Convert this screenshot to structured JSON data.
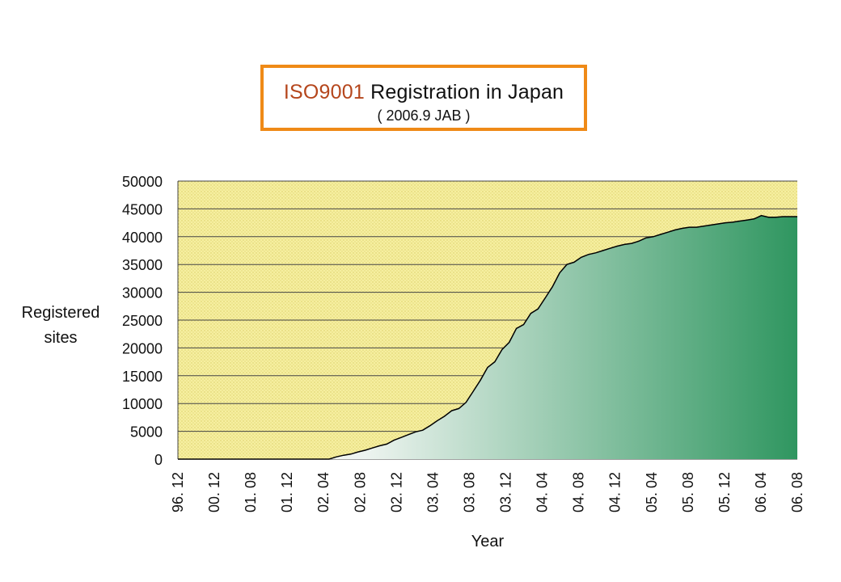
{
  "title": {
    "accent": "ISO9001",
    "rest": " Registration in Japan",
    "subtitle": "( 2006.9 JAB )"
  },
  "colors": {
    "title_border": "#ef8a17",
    "title_accent": "#b5461c",
    "plot_bg": "#f6efa0",
    "area_start": "#ffffff",
    "area_end": "#2f9660"
  },
  "chart_data": {
    "type": "area",
    "title": "ISO9001 Registration in Japan",
    "subtitle": "( 2006.9 JAB )",
    "xlabel": "Year",
    "ylabel": "Registered sites",
    "ylim": [
      0,
      50000
    ],
    "yticks": [
      0,
      5000,
      10000,
      15000,
      20000,
      25000,
      30000,
      35000,
      40000,
      45000,
      50000
    ],
    "xtick_labels": [
      "96. 12",
      "00. 12",
      "01. 08",
      "01. 12",
      "02. 04",
      "02. 08",
      "02. 12",
      "03. 04",
      "03. 08",
      "03. 12",
      "04. 04",
      "04. 08",
      "04. 12",
      "05. 04",
      "05. 08",
      "05. 12",
      "06. 04",
      "06. 08"
    ],
    "grid": "horizontal",
    "legend": "none",
    "series": [
      {
        "values": [
          0,
          0,
          0,
          0,
          0,
          0,
          0,
          0,
          0,
          0,
          0,
          0,
          0,
          0,
          0,
          0,
          0,
          0,
          0,
          0,
          0,
          0,
          400,
          700,
          900,
          1300,
          1600,
          2000,
          2400,
          2700,
          3400,
          3900,
          4400,
          4900,
          5200,
          6000,
          6900,
          7700,
          8700,
          9100,
          10200,
          12200,
          14200,
          16500,
          17500,
          19700,
          21000,
          23500,
          24200,
          26200,
          27000,
          29000,
          31000,
          33500,
          35000,
          35400,
          36300,
          36800,
          37100,
          37500,
          37900,
          38300,
          38600,
          38800,
          39200,
          39800,
          40000,
          40400,
          40800,
          41200,
          41500,
          41700,
          41700,
          41900,
          42100,
          42300,
          42500,
          42600,
          42800,
          43000,
          43200,
          43800,
          43500,
          43500,
          43600,
          43600,
          43600
        ]
      }
    ]
  }
}
